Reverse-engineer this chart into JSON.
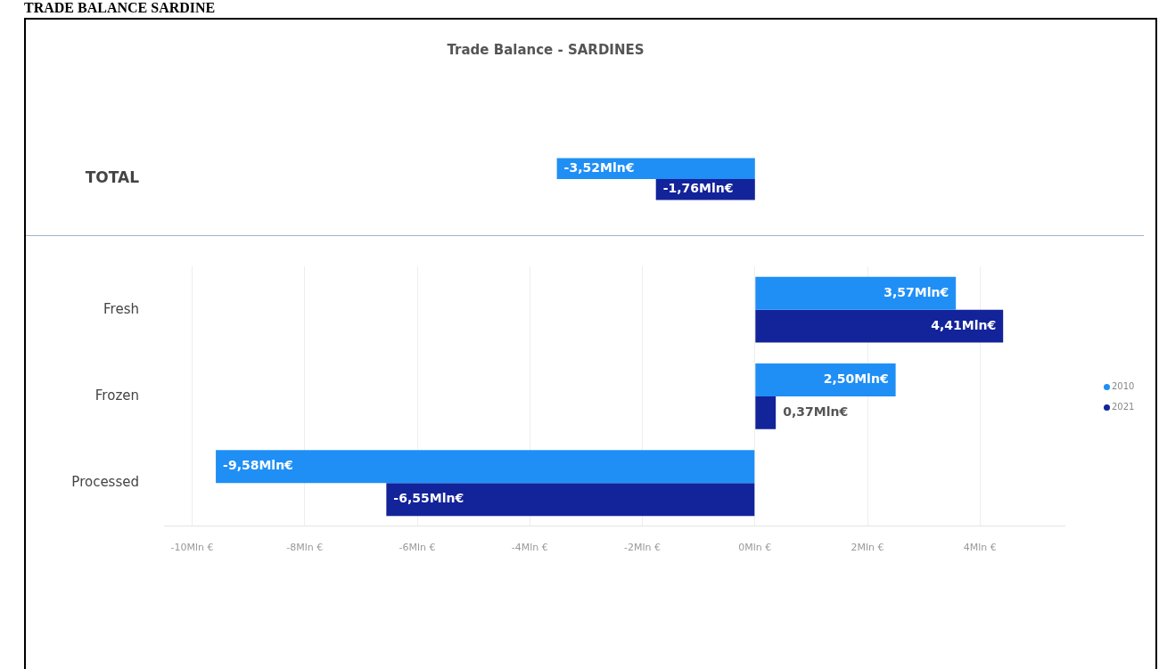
{
  "chart_data": [
    {
      "type": "bar",
      "orientation": "horizontal",
      "title": "Trade Balance - SARDINES",
      "annotations": [
        "TRADE BALANCE SARDINE"
      ],
      "categories": [
        "TOTAL"
      ],
      "tick_labels": "y",
      "grid": false,
      "series": [
        {
          "color": "#1f8ff5",
          "values": [
            -3.52
          ],
          "value_labels": [
            "-3,52Mln€"
          ]
        },
        {
          "color": "#13239a",
          "values": [
            -1.76
          ],
          "value_labels": [
            "-1,76Mln€"
          ]
        }
      ]
    },
    {
      "type": "bar",
      "orientation": "horizontal",
      "categories": [
        "Fresh",
        "Frozen",
        "Processed"
      ],
      "xlim": [
        -10.5,
        5.5
      ],
      "xticks": [
        {
          "value": -10,
          "label": "-10Mln €"
        },
        {
          "value": -8,
          "label": "-8Mln €"
        },
        {
          "value": -6,
          "label": "-6Mln €"
        },
        {
          "value": -4,
          "label": "-4Mln €"
        },
        {
          "value": -2,
          "label": "-2Mln €"
        },
        {
          "value": 0,
          "label": "0Mln €"
        },
        {
          "value": 2,
          "label": "2Mln €"
        },
        {
          "value": 4,
          "label": "4Mln €"
        }
      ],
      "grid": "x",
      "legend": "right",
      "series": [
        {
          "name": "2010",
          "color": "#1f8ff5",
          "values": [
            3.57,
            2.5,
            -9.58
          ],
          "value_labels": [
            "3,57Mln€",
            "2,50Mln€",
            "-9,58Mln€"
          ]
        },
        {
          "name": "2021",
          "color": "#13239a",
          "values": [
            4.41,
            0.37,
            -6.55
          ],
          "value_labels": [
            "4,41Mln€",
            "0,37Mln€",
            "-6,55Mln€"
          ]
        }
      ]
    }
  ]
}
